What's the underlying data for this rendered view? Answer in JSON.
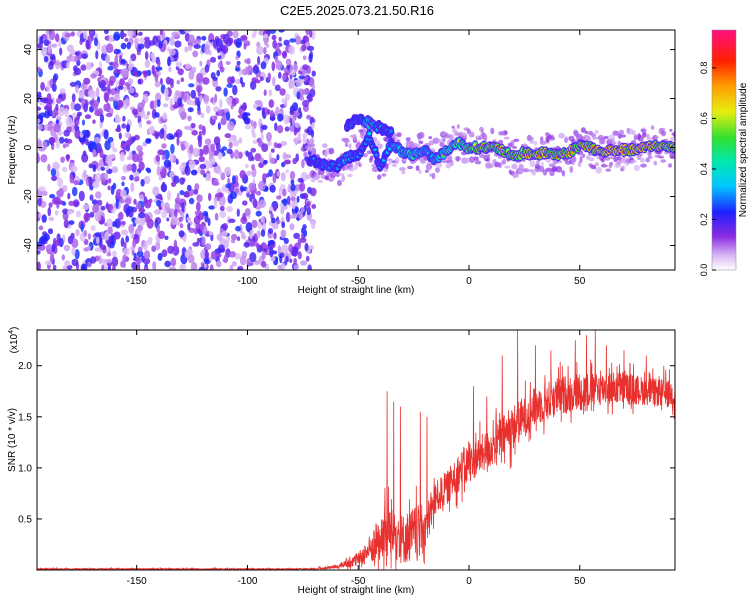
{
  "title": "C2E5.2025.073.21.50.R16",
  "chart_data": [
    {
      "type": "heatmap",
      "xlabel": "Height of straight line (km)",
      "ylabel": "Frequency (Hz)",
      "xlim": [
        -195,
        93
      ],
      "ylim": [
        -50,
        48
      ],
      "x_ticks": [
        -150,
        -100,
        -50,
        0,
        50
      ],
      "x_tick_labels": [
        "-150",
        "-100",
        "-50",
        "0",
        "50"
      ],
      "y_ticks": [
        -40,
        -20,
        0,
        20,
        40
      ],
      "y_tick_labels": [
        "-40",
        "-20",
        "0",
        "20",
        "40"
      ],
      "colorbar": {
        "label": "Normalized spectral amplitude",
        "range": [
          0,
          0.95
        ],
        "ticks": [
          0.0,
          0.2,
          0.4,
          0.6,
          0.8
        ],
        "tick_labels": [
          "0.0",
          "0.2",
          "0.4",
          "0.6",
          "0.8"
        ],
        "colormap": "rainbow (white-violet-blue-cyan-green-yellow-red-magenta)"
      },
      "noise_region": {
        "x_range": [
          -195,
          -70
        ],
        "freq_range": [
          -50,
          48
        ],
        "amplitude_range": [
          0.05,
          0.25
        ]
      },
      "ridge": {
        "description": "narrowband signal near 0 Hz from about -70 km",
        "points": [
          {
            "x": -72,
            "f": -5,
            "a": 0.3
          },
          {
            "x": -65,
            "f": -7,
            "a": 0.35
          },
          {
            "x": -60,
            "f": -8,
            "a": 0.32
          },
          {
            "x": -55,
            "f": -4,
            "a": 0.4
          },
          {
            "x": -50,
            "f": -3,
            "a": 0.3
          },
          {
            "x": -45,
            "f": 5,
            "a": 0.35
          },
          {
            "x": -40,
            "f": -8,
            "a": 0.28
          },
          {
            "x": -35,
            "f": 2,
            "a": 0.4
          },
          {
            "x": -30,
            "f": -2,
            "a": 0.45
          },
          {
            "x": -25,
            "f": -3,
            "a": 0.5
          },
          {
            "x": -20,
            "f": -1,
            "a": 0.45
          },
          {
            "x": -15,
            "f": -5,
            "a": 0.4
          },
          {
            "x": -10,
            "f": -1,
            "a": 0.55
          },
          {
            "x": -5,
            "f": 2,
            "a": 0.6
          },
          {
            "x": 0,
            "f": 0,
            "a": 0.7
          },
          {
            "x": 5,
            "f": 0,
            "a": 0.75
          },
          {
            "x": 10,
            "f": 0,
            "a": 0.8
          },
          {
            "x": 15,
            "f": -1,
            "a": 0.8
          },
          {
            "x": 20,
            "f": -4,
            "a": 0.7
          },
          {
            "x": 25,
            "f": -2,
            "a": 0.8
          },
          {
            "x": 30,
            "f": -3,
            "a": 0.85
          },
          {
            "x": 35,
            "f": -2,
            "a": 0.85
          },
          {
            "x": 40,
            "f": -3,
            "a": 0.8
          },
          {
            "x": 45,
            "f": -2,
            "a": 0.85
          },
          {
            "x": 50,
            "f": 1,
            "a": 0.8
          },
          {
            "x": 55,
            "f": 0,
            "a": 0.85
          },
          {
            "x": 60,
            "f": -2,
            "a": 0.9
          },
          {
            "x": 65,
            "f": -1,
            "a": 0.9
          },
          {
            "x": 70,
            "f": -1,
            "a": 0.85
          },
          {
            "x": 75,
            "f": -1,
            "a": 0.9
          },
          {
            "x": 80,
            "f": 0,
            "a": 0.9
          },
          {
            "x": 85,
            "f": 1,
            "a": 0.85
          },
          {
            "x": 90,
            "f": 0,
            "a": 0.8
          }
        ]
      },
      "secondary_ridge": {
        "description": "upper branch near 5-15 Hz",
        "points": [
          {
            "x": -55,
            "f": 9,
            "a": 0.3
          },
          {
            "x": -50,
            "f": 12,
            "a": 0.35
          },
          {
            "x": -45,
            "f": 10,
            "a": 0.45
          },
          {
            "x": -40,
            "f": 8,
            "a": 0.35
          },
          {
            "x": -35,
            "f": 6,
            "a": 0.3
          }
        ]
      }
    },
    {
      "type": "line",
      "xlabel": "Height of straight line (km)",
      "ylabel": "SNR (10 * v/v)",
      "y_multiplier": "(x10",
      "y_multiplier_exp": "4",
      "y_multiplier_close": ")",
      "xlim": [
        -195,
        93
      ],
      "ylim": [
        0,
        2.35
      ],
      "x_ticks": [
        -150,
        -100,
        -50,
        0,
        50
      ],
      "x_tick_labels": [
        "-150",
        "-100",
        "-50",
        "0",
        "50"
      ],
      "y_ticks": [
        0.5,
        1.0,
        1.5,
        2.0
      ],
      "y_tick_labels": [
        "0.5",
        "1.0",
        "1.5",
        "2.0"
      ],
      "series": [
        {
          "color": "#e8302e",
          "envelope": [
            {
              "x": -195,
              "base": 0.01,
              "spread": 0.01
            },
            {
              "x": -70,
              "base": 0.01,
              "spread": 0.01
            },
            {
              "x": -60,
              "base": 0.03,
              "spread": 0.03
            },
            {
              "x": -50,
              "base": 0.1,
              "spread": 0.12
            },
            {
              "x": -45,
              "base": 0.2,
              "spread": 0.25
            },
            {
              "x": -40,
              "base": 0.3,
              "spread": 0.45
            },
            {
              "x": -35,
              "base": 0.4,
              "spread": 0.55
            },
            {
              "x": -30,
              "base": 0.3,
              "spread": 0.45
            },
            {
              "x": -25,
              "base": 0.35,
              "spread": 0.5
            },
            {
              "x": -20,
              "base": 0.4,
              "spread": 0.45
            },
            {
              "x": -15,
              "base": 0.7,
              "spread": 0.3
            },
            {
              "x": -10,
              "base": 0.8,
              "spread": 0.3
            },
            {
              "x": -5,
              "base": 0.95,
              "spread": 0.35
            },
            {
              "x": 0,
              "base": 1.05,
              "spread": 0.35
            },
            {
              "x": 10,
              "base": 1.2,
              "spread": 0.35
            },
            {
              "x": 20,
              "base": 1.4,
              "spread": 0.4
            },
            {
              "x": 30,
              "base": 1.6,
              "spread": 0.35
            },
            {
              "x": 40,
              "base": 1.7,
              "spread": 0.35
            },
            {
              "x": 50,
              "base": 1.75,
              "spread": 0.35
            },
            {
              "x": 60,
              "base": 1.78,
              "spread": 0.3
            },
            {
              "x": 70,
              "base": 1.78,
              "spread": 0.3
            },
            {
              "x": 80,
              "base": 1.75,
              "spread": 0.25
            },
            {
              "x": 93,
              "base": 1.72,
              "spread": 0.25
            }
          ],
          "spikes": [
            {
              "x": -37,
              "value": 1.75
            },
            {
              "x": -34,
              "value": 1.65
            },
            {
              "x": -31,
              "value": 1.6
            },
            {
              "x": -22,
              "value": 1.55
            },
            {
              "x": -19,
              "value": 1.5
            },
            {
              "x": 2,
              "value": 1.8
            },
            {
              "x": 8,
              "value": 1.7
            },
            {
              "x": 15,
              "value": 2.1
            },
            {
              "x": 22,
              "value": 2.35
            },
            {
              "x": 30,
              "value": 2.2
            },
            {
              "x": 37,
              "value": 2.15
            },
            {
              "x": 48,
              "value": 2.25
            },
            {
              "x": 53,
              "value": 2.3
            },
            {
              "x": 57,
              "value": 2.35
            },
            {
              "x": 62,
              "value": 2.2
            },
            {
              "x": 70,
              "value": 2.15
            },
            {
              "x": 80,
              "value": 2.1
            },
            {
              "x": 88,
              "value": 2.0
            }
          ]
        }
      ]
    }
  ]
}
